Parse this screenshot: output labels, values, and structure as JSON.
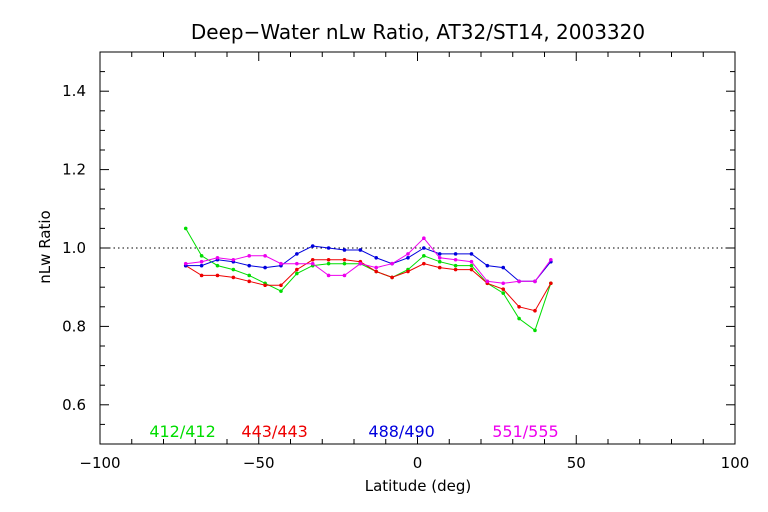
{
  "chart_data": {
    "type": "line",
    "title": "Deep−Water nLw Ratio, AT32/ST14, 2003320",
    "xlabel": "Latitude (deg)",
    "ylabel": "nLw Ratio",
    "xlim": [
      -100,
      100
    ],
    "ylim": [
      0.5,
      1.5
    ],
    "xticks": [
      -100,
      -50,
      0,
      50,
      100
    ],
    "xtick_labels": [
      "−100",
      "−50",
      "0",
      "50",
      "100"
    ],
    "yticks": [
      0.6,
      0.8,
      1.0,
      1.2,
      1.4
    ],
    "ytick_labels": [
      "0.6",
      "0.8",
      "1.0",
      "1.2",
      "1.4"
    ],
    "reference_line": {
      "y": 1.0,
      "style": "dotted"
    },
    "grid": false,
    "legend_position": "bottom",
    "x": [
      -73,
      -68,
      -63,
      -58,
      -53,
      -48,
      -43,
      -38,
      -33,
      -28,
      -23,
      -18,
      -13,
      -8,
      -3,
      2,
      7,
      12,
      17,
      22,
      27,
      32,
      37,
      42
    ],
    "series": [
      {
        "name": "412/412",
        "color": "#00dd00",
        "values": [
          1.05,
          0.98,
          0.955,
          0.945,
          0.93,
          0.91,
          0.89,
          0.935,
          0.955,
          0.96,
          0.96,
          0.96,
          0.94,
          0.925,
          0.945,
          0.98,
          0.965,
          0.955,
          0.955,
          0.91,
          0.885,
          0.82,
          0.79,
          0.91
        ]
      },
      {
        "name": "443/443",
        "color": "#ee0000",
        "values": [
          0.955,
          0.93,
          0.93,
          0.925,
          0.915,
          0.905,
          0.905,
          0.945,
          0.97,
          0.97,
          0.97,
          0.965,
          0.94,
          0.925,
          0.94,
          0.96,
          0.95,
          0.945,
          0.945,
          0.91,
          0.895,
          0.85,
          0.84,
          0.91
        ]
      },
      {
        "name": "488/490",
        "color": "#0000dd",
        "values": [
          0.955,
          0.955,
          0.97,
          0.965,
          0.955,
          0.95,
          0.955,
          0.985,
          1.005,
          1.0,
          0.995,
          0.995,
          0.975,
          0.96,
          0.975,
          1.0,
          0.985,
          0.985,
          0.985,
          0.955,
          0.95,
          0.915,
          0.915,
          0.965
        ]
      },
      {
        "name": "551/555",
        "color": "#ee00ee",
        "values": [
          0.96,
          0.965,
          0.975,
          0.97,
          0.98,
          0.98,
          0.96,
          0.96,
          0.96,
          0.93,
          0.93,
          0.96,
          0.95,
          0.96,
          0.985,
          1.025,
          0.975,
          0.97,
          0.965,
          0.915,
          0.91,
          0.915,
          0.915,
          0.97
        ]
      }
    ]
  }
}
